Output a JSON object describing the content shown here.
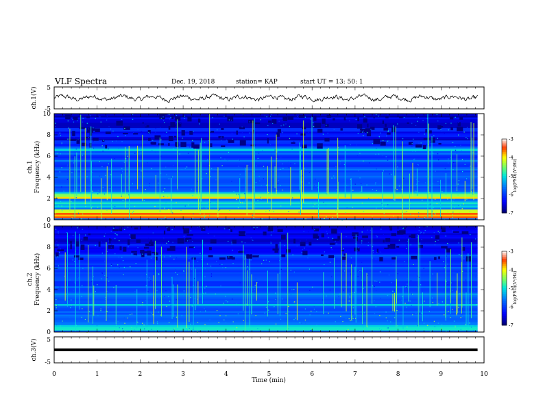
{
  "header": {
    "title": "VLF Spectra",
    "date": "Dec. 19, 2018",
    "station": "station= KAP",
    "start": "start  UT =   13: 50: 1"
  },
  "chart_data": [
    {
      "type": "line",
      "ylabel": "ch.1(V)",
      "ylim": [
        -5,
        5
      ],
      "yticks": [
        "5",
        "-5"
      ],
      "xlim": [
        0,
        10
      ],
      "x_end": 9.85,
      "y_range_approx": [
        -1.8,
        1.6
      ],
      "description_values": "noisy waveform around 0 V"
    },
    {
      "type": "heatmap",
      "ylabel": "ch.1",
      "ylabel2": "Frequency  (kHz)",
      "ylim": [
        0,
        10
      ],
      "yticks": [
        "0",
        "2",
        "4",
        "6",
        "8",
        "10"
      ],
      "xlim": [
        0,
        10
      ],
      "x_end": 9.85,
      "bands_khz": [
        {
          "f": 0.3,
          "v": -3.3
        },
        {
          "f": 0.6,
          "v": -3.6
        },
        {
          "f": 0.9,
          "v": -4.2
        },
        {
          "f": 1.3,
          "v": -4.8
        },
        {
          "f": 1.6,
          "v": -4.9
        },
        {
          "f": 2.1,
          "v": -3.8
        },
        {
          "f": 2.3,
          "v": -4.2
        },
        {
          "f": 2.6,
          "v": -5.3
        },
        {
          "f": 3.3,
          "v": -5.6
        },
        {
          "f": 4.0,
          "v": -5.4
        },
        {
          "f": 4.8,
          "v": -5.5
        },
        {
          "f": 5.6,
          "v": -5.5
        },
        {
          "f": 6.3,
          "v": -5.4
        },
        {
          "f": 6.6,
          "v": -4.9
        },
        {
          "f": 8.0,
          "v": -5.6
        },
        {
          "f": 8.5,
          "v": -5.3
        },
        {
          "f": 9.5,
          "v": -5.7
        }
      ],
      "colorbar": {
        "label": "log(PSD)(V²/Hz)",
        "ticks": [
          "-3",
          "-4",
          "-5",
          "-6",
          "-7"
        ],
        "range": [
          -7,
          -3
        ]
      }
    },
    {
      "type": "heatmap",
      "ylabel": "ch.2",
      "ylabel2": "Frequency  (kHz)",
      "ylim": [
        0,
        10
      ],
      "yticks": [
        "0",
        "2",
        "4",
        "6",
        "8",
        "10"
      ],
      "xlim": [
        0,
        10
      ],
      "x_end": 9.85,
      "bands_khz": [
        {
          "f": 0.3,
          "v": -4.6
        },
        {
          "f": 0.6,
          "v": -5.0
        },
        {
          "f": 1.0,
          "v": -5.3
        },
        {
          "f": 1.5,
          "v": -5.4
        },
        {
          "f": 2.0,
          "v": -5.5
        },
        {
          "f": 2.6,
          "v": -5.2
        },
        {
          "f": 3.0,
          "v": -5.8
        },
        {
          "f": 3.5,
          "v": -5.2
        },
        {
          "f": 4.2,
          "v": -5.5
        },
        {
          "f": 5.0,
          "v": -5.5
        },
        {
          "f": 6.0,
          "v": -5.5
        },
        {
          "f": 7.2,
          "v": -5.6
        },
        {
          "f": 8.2,
          "v": -5.5
        },
        {
          "f": 9.0,
          "v": -5.6
        },
        {
          "f": 9.5,
          "v": -5.6
        }
      ],
      "colorbar": {
        "label": "log(PSD)(V²/Hz)",
        "ticks": [
          "-3",
          "-4",
          "-5",
          "-6",
          "-7"
        ],
        "range": [
          -7,
          -3
        ]
      }
    },
    {
      "type": "line",
      "ylabel": "ch.3(V)",
      "ylim": [
        -5,
        5
      ],
      "yticks": [
        "5",
        "-5"
      ],
      "xlim": [
        0,
        10
      ],
      "x_end": 9.85,
      "constant_value": 0,
      "xlabel": "Time  (min)",
      "xticks": [
        "0",
        "1",
        "2",
        "3",
        "4",
        "5",
        "6",
        "7",
        "8",
        "9",
        "10"
      ]
    }
  ],
  "colors": {
    "background": "#ffffff",
    "trace": "#000000",
    "colormap": [
      "#000080",
      "#0000ff",
      "#00c8ff",
      "#80ff80",
      "#ffff00",
      "#ff4000",
      "#ffffff"
    ]
  }
}
